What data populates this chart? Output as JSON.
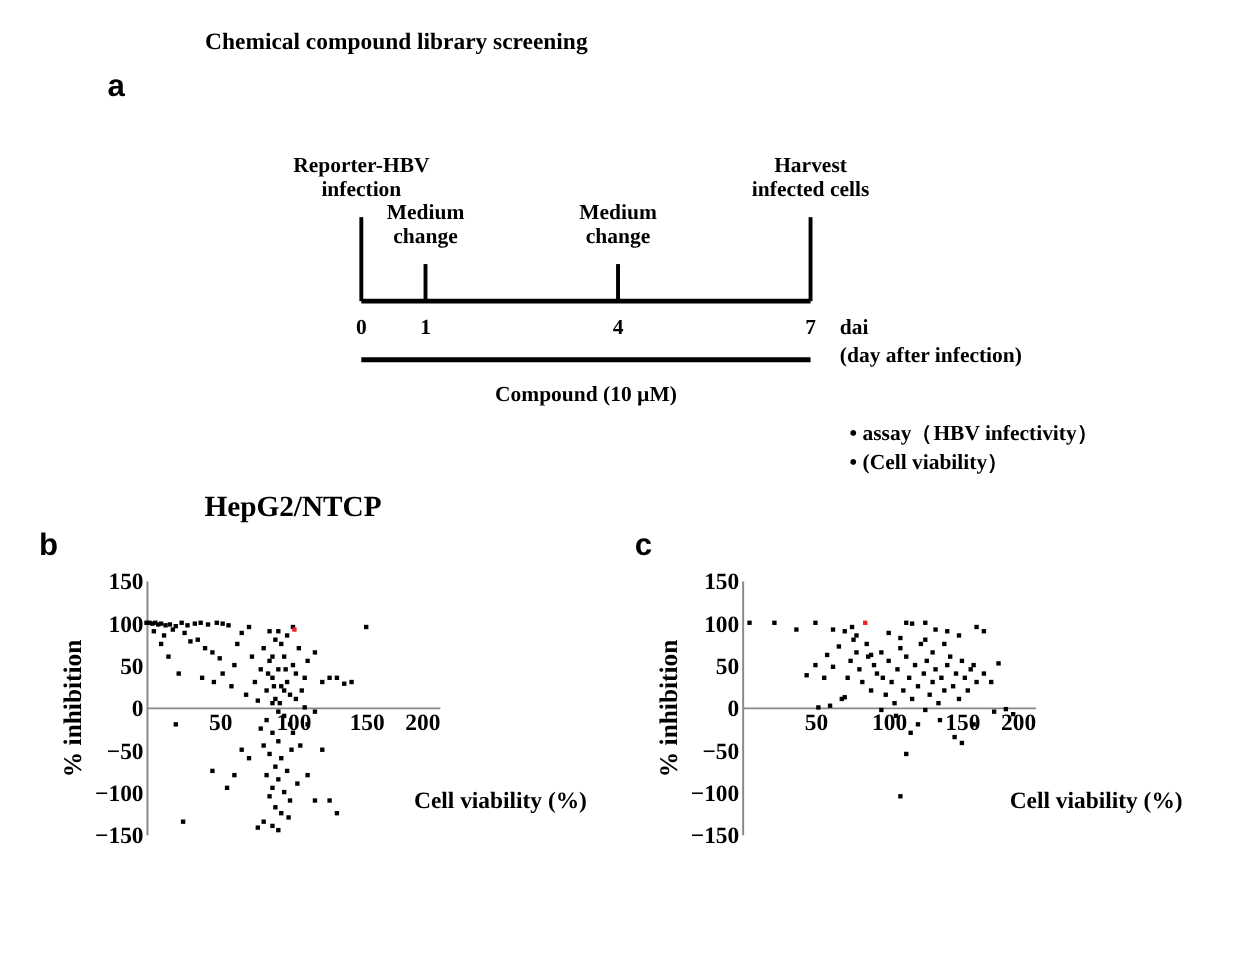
{
  "chart_data": [
    {
      "type": "other",
      "title": "Chemical compound library screening",
      "xlabel": "dai\n(day after infection)",
      "annotations": [
        "a",
        "Reporter-HBV\ninfection",
        "Medium\nchange",
        "Medium\nchange",
        "Harvest\ninfected cells",
        "0",
        "1",
        "4",
        "7",
        "Compound (10 µM)",
        "•   assay（HBV infectivity）",
        "•   (Cell viability）"
      ]
    },
    {
      "type": "scatter",
      "title": "HepG2/NTCP",
      "xlabel": "Cell viability (%)",
      "ylabel": "% inhibition",
      "xlim": [
        0,
        200
      ],
      "xticks": [
        50,
        100,
        150,
        200
      ],
      "ylim": [
        -150,
        150
      ],
      "yticks": [
        -150,
        -100,
        -50,
        0,
        50,
        100,
        150
      ],
      "marker": "square",
      "annotations": [
        "b"
      ],
      "series": [
        {
          "color": "#000000",
          "x": [
            0,
            2,
            4,
            6,
            8,
            10,
            13,
            16,
            20,
            24,
            28,
            33,
            37,
            42,
            48,
            52,
            56,
            12,
            18,
            26,
            30,
            35,
            40,
            45,
            50,
            22,
            38,
            46,
            52,
            58,
            60,
            62,
            65,
            70,
            72,
            68,
            74,
            76,
            78,
            80,
            82,
            84,
            86,
            88,
            90,
            92,
            94,
            96,
            98,
            100,
            102,
            104,
            106,
            108,
            110,
            115,
            120,
            125,
            88,
            92,
            96,
            84,
            86,
            90,
            94,
            82,
            78,
            86,
            90,
            80,
            84,
            92,
            88,
            96,
            82,
            90,
            86,
            94,
            84,
            98,
            88,
            92,
            80,
            86,
            76,
            70,
            65,
            60,
            55,
            45,
            100,
            105,
            110,
            115,
            120,
            125,
            130,
            150,
            140,
            130,
            135,
            20,
            25,
            5,
            15,
            10,
            102,
            108,
            98,
            94,
            86,
            90,
            100,
            83,
            87,
            91,
            95,
            99,
            103,
            97,
            90,
            115,
            110
          ],
          "values": [
            100,
            100,
            99,
            100,
            98,
            99,
            97,
            98,
            96,
            100,
            97,
            99,
            100,
            98,
            100,
            99,
            97,
            85,
            92,
            88,
            78,
            80,
            70,
            65,
            58,
            40,
            35,
            30,
            40,
            25,
            50,
            75,
            88,
            95,
            60,
            15,
            30,
            8,
            45,
            70,
            20,
            55,
            35,
            10,
            45,
            25,
            60,
            30,
            15,
            50,
            40,
            70,
            20,
            35,
            55,
            65,
            30,
            35,
            80,
            75,
            85,
            90,
            5,
            -5,
            -10,
            -15,
            -25,
            -30,
            -40,
            -45,
            -55,
            -60,
            -70,
            -75,
            -80,
            -85,
            -95,
            -100,
            -105,
            -110,
            -118,
            -125,
            -135,
            -140,
            -142,
            -60,
            -50,
            -80,
            -95,
            -75,
            -30,
            -45,
            -20,
            -5,
            -50,
            -110,
            -125,
            95,
            30,
            35,
            28,
            -20,
            -135,
            90,
            60,
            75,
            10,
            0,
            -20,
            20,
            60,
            90,
            95,
            40,
            25,
            5,
            45,
            -50,
            -90,
            -130,
            -145,
            -110,
            -80
          ]
        },
        {
          "color": "#e8262b",
          "x": [
            101
          ],
          "values": [
            92
          ]
        }
      ]
    },
    {
      "type": "scatter",
      "xlabel": "Cell viability (%)",
      "ylabel": "% inhibition",
      "xlim": [
        0,
        200
      ],
      "xticks": [
        50,
        100,
        150,
        200
      ],
      "ylim": [
        -150,
        150
      ],
      "yticks": [
        -150,
        -100,
        -50,
        0,
        50,
        100,
        150
      ],
      "marker": "square",
      "annotations": [
        "c"
      ],
      "series": [
        {
          "color": "#000000",
          "x": [
            5,
            22,
            37,
            50,
            62,
            70,
            75,
            78,
            100,
            108,
            112,
            116,
            125,
            132,
            140,
            160,
            165,
            44,
            50,
            56,
            58,
            62,
            66,
            68,
            72,
            74,
            76,
            78,
            80,
            82,
            85,
            86,
            88,
            90,
            92,
            95,
            98,
            100,
            102,
            104,
            106,
            108,
            110,
            112,
            114,
            116,
            118,
            120,
            122,
            124,
            126,
            128,
            130,
            132,
            134,
            136,
            138,
            140,
            142,
            144,
            146,
            148,
            150,
            152,
            154,
            156,
            158,
            160,
            165,
            170,
            175,
            172,
            180,
            185,
            60,
            52,
            70,
            95,
            105,
            115,
            120,
            125,
            135,
            145,
            150,
            158,
            112,
            108,
            125,
            88,
            96,
            130,
            138,
            148
          ],
          "values": [
            100,
            100,
            92,
            100,
            92,
            90,
            95,
            85,
            88,
            82,
            100,
            99,
            80,
            92,
            90,
            95,
            90,
            38,
            50,
            35,
            62,
            48,
            72,
            10,
            35,
            55,
            80,
            65,
            45,
            30,
            75,
            60,
            20,
            50,
            40,
            65,
            15,
            55,
            30,
            5,
            45,
            70,
            20,
            60,
            35,
            10,
            50,
            25,
            75,
            40,
            55,
            15,
            30,
            45,
            5,
            35,
            20,
            50,
            60,
            25,
            40,
            10,
            55,
            35,
            20,
            45,
            50,
            30,
            40,
            30,
            52,
            -5,
            -2,
            -8,
            2,
            0,
            12,
            -3,
            -10,
            -30,
            -20,
            -3,
            -15,
            -35,
            -42,
            -20,
            -55,
            -105,
            100,
            62,
            35,
            65,
            75,
            85
          ]
        },
        {
          "color": "#e8262b",
          "x": [
            84
          ],
          "values": [
            100
          ]
        }
      ]
    }
  ]
}
